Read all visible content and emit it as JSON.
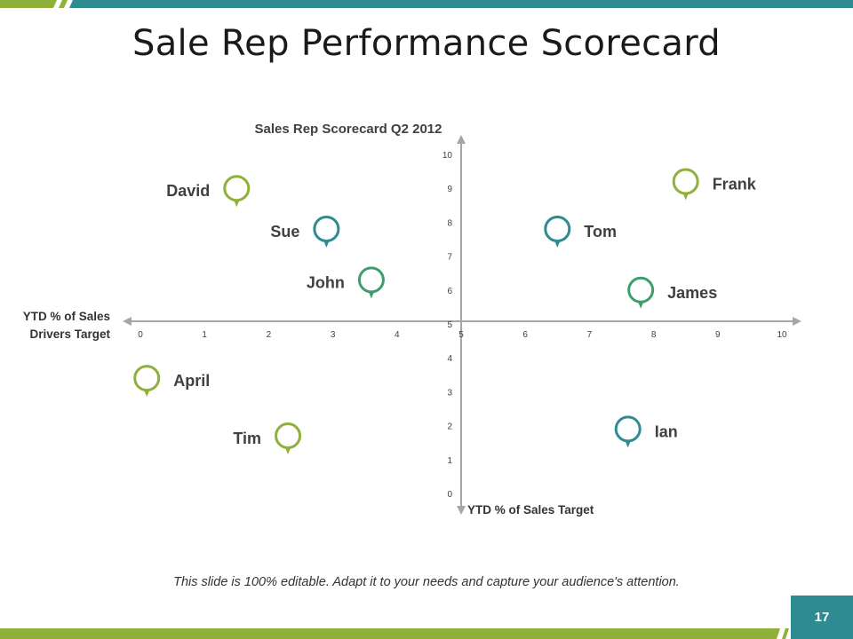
{
  "slide": {
    "title": "Sale Rep Performance Scorecard",
    "footer": "This slide is 100% editable. Adapt it to your needs and capture your audience's attention.",
    "page_number": "17"
  },
  "colors": {
    "teal": "#2E8B92",
    "olive": "#8FB13A",
    "green": "#3E9E6B",
    "text_dark": "#404040",
    "axis": "#a6a6a6"
  },
  "chart_data": {
    "type": "scatter",
    "title": "Sales Rep Scorecard Q2 2012",
    "xlabel": "YTD % of Sales Drivers Target",
    "ylabel": "YTD % of Sales Target",
    "xlim": [
      0,
      10
    ],
    "ylim": [
      0,
      10
    ],
    "xticks": [
      "0",
      "1",
      "2",
      "3",
      "4",
      "5",
      "6",
      "7",
      "8",
      "9",
      "10"
    ],
    "yticks": [
      "0",
      "1",
      "2",
      "3",
      "4",
      "5",
      "6",
      "7",
      "8",
      "9",
      "10"
    ],
    "grid": false,
    "marker": "map-pin-icon",
    "points": [
      {
        "name": "David",
        "x": 1.5,
        "y": 9.0,
        "color": "olive"
      },
      {
        "name": "Frank",
        "x": 8.5,
        "y": 9.2,
        "color": "olive"
      },
      {
        "name": "Sue",
        "x": 2.9,
        "y": 7.8,
        "color": "teal"
      },
      {
        "name": "Tom",
        "x": 6.5,
        "y": 7.8,
        "color": "teal"
      },
      {
        "name": "John",
        "x": 3.6,
        "y": 6.3,
        "color": "green"
      },
      {
        "name": "James",
        "x": 7.8,
        "y": 6.0,
        "color": "green"
      },
      {
        "name": "April",
        "x": 0.1,
        "y": 3.4,
        "color": "olive"
      },
      {
        "name": "Tim",
        "x": 2.3,
        "y": 1.7,
        "color": "olive"
      },
      {
        "name": "Ian",
        "x": 7.6,
        "y": 1.9,
        "color": "teal"
      }
    ]
  }
}
